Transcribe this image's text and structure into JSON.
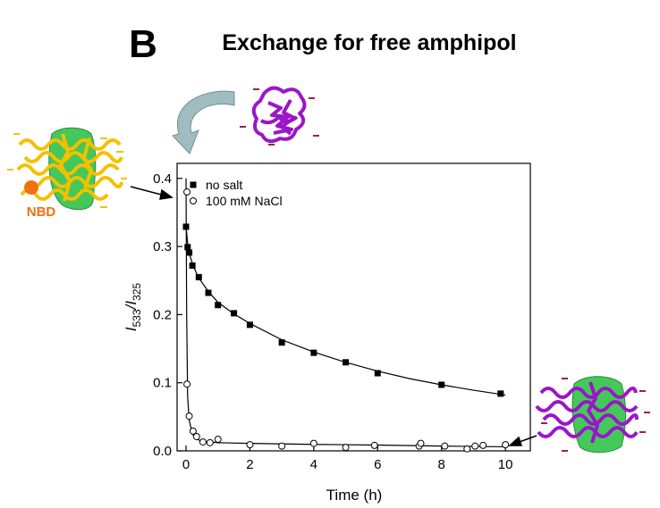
{
  "chart_data": {
    "type": "scatter",
    "panel_label": "B",
    "title": "Exchange for free amphipol",
    "annotation": "NBD",
    "xlabel": "Time (h)",
    "ylabel": [
      {
        "text": "I",
        "style": "italic"
      },
      {
        "text": "533",
        "style": "sub"
      },
      {
        "text": "/I",
        "style": "italic"
      },
      {
        "text": "325",
        "style": "sub"
      }
    ],
    "xlim": [
      -0.28,
      10.78
    ],
    "ylim": [
      0,
      0.422
    ],
    "xticks": [
      0,
      2,
      4,
      6,
      8,
      10
    ],
    "yticks": [
      {
        "value": 0,
        "label": "0.0"
      },
      0.1,
      0.2,
      0.3,
      0.4
    ],
    "grid": false,
    "legend": "upper left",
    "series": [
      {
        "name": "no salt",
        "marker": "filled-square",
        "color": "#000000",
        "x": [
          0,
          0.05,
          0.1,
          0.2,
          0.4,
          0.7,
          1,
          1.5,
          2,
          3,
          4,
          5,
          6,
          8,
          9.85
        ],
        "values": [
          0.329,
          0.299,
          0.291,
          0.272,
          0.255,
          0.232,
          0.214,
          0.202,
          0.185,
          0.159,
          0.144,
          0.13,
          0.114,
          0.097,
          0.084
        ],
        "fit_x": [
          0,
          0.05,
          0.1,
          0.2,
          0.35,
          0.5,
          0.7,
          1,
          1.5,
          2,
          3,
          4,
          5,
          6,
          7,
          8,
          9,
          10
        ],
        "fit_values": [
          0.33,
          0.305,
          0.29,
          0.275,
          0.258,
          0.247,
          0.234,
          0.218,
          0.201,
          0.187,
          0.163,
          0.145,
          0.13,
          0.117,
          0.106,
          0.097,
          0.089,
          0.082
        ]
      },
      {
        "name": "100 mM NaCl",
        "marker": "open-circle",
        "color": "#000000",
        "x": [
          0.03,
          0.03,
          0.1,
          0.22,
          0.33,
          0.53,
          0.75,
          1,
          2,
          3,
          4,
          5,
          5.9,
          7.3,
          7.35,
          8.1,
          8.8,
          9.05,
          9.3,
          10
        ],
        "values": [
          0.38,
          0.098,
          0.051,
          0.029,
          0.021,
          0.013,
          0.012,
          0.017,
          0.009,
          0.007,
          0.011,
          0.005,
          0.008,
          0.007,
          0.011,
          0.007,
          0.003,
          0.007,
          0.008,
          0.009
        ],
        "fit_x": [
          0,
          0.02,
          0.05,
          0.1,
          0.2,
          0.3,
          0.5,
          0.75,
          1,
          2,
          4,
          6,
          8,
          10
        ],
        "fit_values": [
          0.4,
          0.2,
          0.08,
          0.045,
          0.025,
          0.018,
          0.014,
          0.013,
          0.012,
          0.011,
          0.0095,
          0.0085,
          0.007,
          0.006
        ]
      }
    ]
  }
}
